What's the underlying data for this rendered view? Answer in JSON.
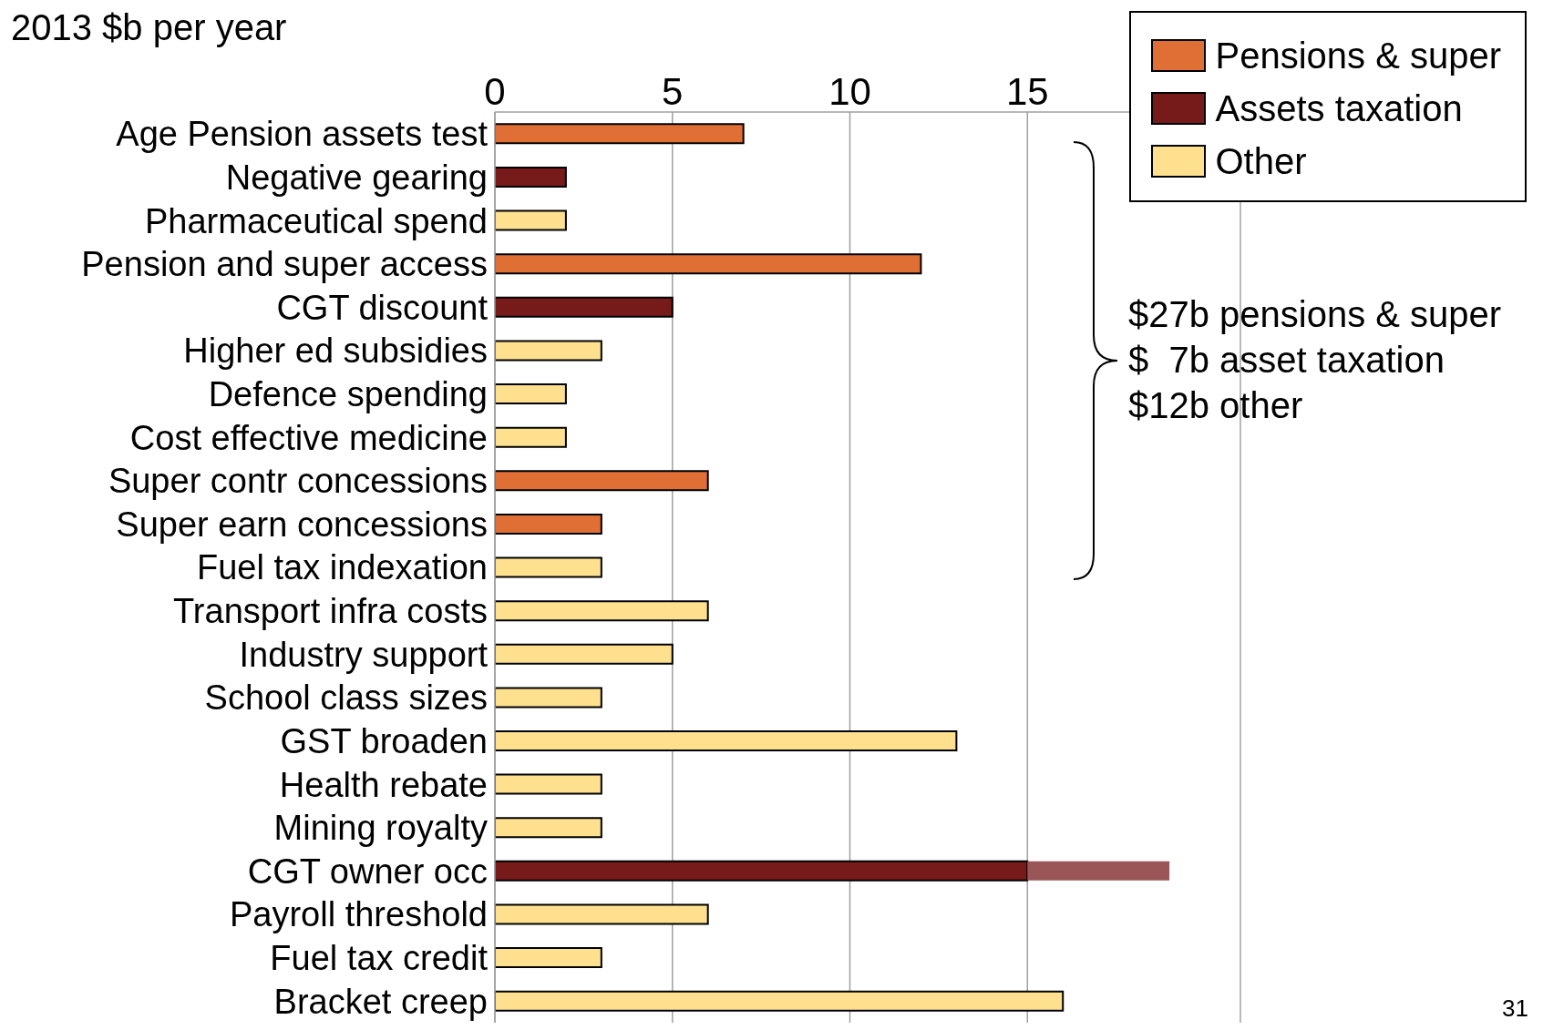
{
  "chart_data": {
    "type": "bar",
    "orientation": "horizontal",
    "stacked": true,
    "title": "2013 $b per year",
    "categories": [
      "Age Pension assets test",
      "Negative gearing",
      "Pharmaceutical spend",
      "Pension and super access",
      "CGT discount",
      "Higher ed subsidies",
      "Defence spending",
      "Cost effective medicine",
      "Super contr concessions",
      "Super earn concessions",
      "Fuel tax indexation",
      "Transport infra costs",
      "Industry support",
      "School class sizes",
      "GST broaden",
      "Health rebate",
      "Mining royalty",
      "CGT owner occ",
      "Payroll threshold",
      "Fuel tax credit",
      "Bracket creep"
    ],
    "series": [
      {
        "name": "Pensions & super",
        "color": "#e06f35",
        "values": [
          7,
          null,
          null,
          12,
          null,
          null,
          null,
          null,
          6,
          3,
          null,
          null,
          null,
          null,
          null,
          null,
          null,
          null,
          null,
          null,
          null
        ]
      },
      {
        "name": "Assets taxation",
        "color": "#761a1a",
        "values": [
          null,
          2,
          null,
          null,
          5,
          null,
          null,
          null,
          null,
          null,
          null,
          null,
          null,
          null,
          null,
          null,
          null,
          15,
          null,
          null,
          null
        ]
      },
      {
        "name": "Other",
        "color": "#fee08f",
        "values": [
          null,
          null,
          2,
          null,
          null,
          3,
          2,
          2,
          null,
          null,
          3,
          6,
          5,
          3,
          13,
          3,
          3,
          null,
          6,
          3,
          16
        ]
      },
      {
        "color": "#9a5557",
        "values": [
          null,
          null,
          null,
          null,
          null,
          null,
          null,
          null,
          null,
          null,
          null,
          null,
          null,
          null,
          null,
          null,
          null,
          4,
          null,
          null,
          null
        ]
      }
    ],
    "xlim": [
      0,
      21
    ],
    "xticks": [
      0,
      5,
      10,
      15
    ],
    "grid": "x",
    "legend": "top right",
    "annotations": [
      "$27b pensions & super",
      "$  7b asset taxation",
      "$12b other",
      "31"
    ]
  }
}
